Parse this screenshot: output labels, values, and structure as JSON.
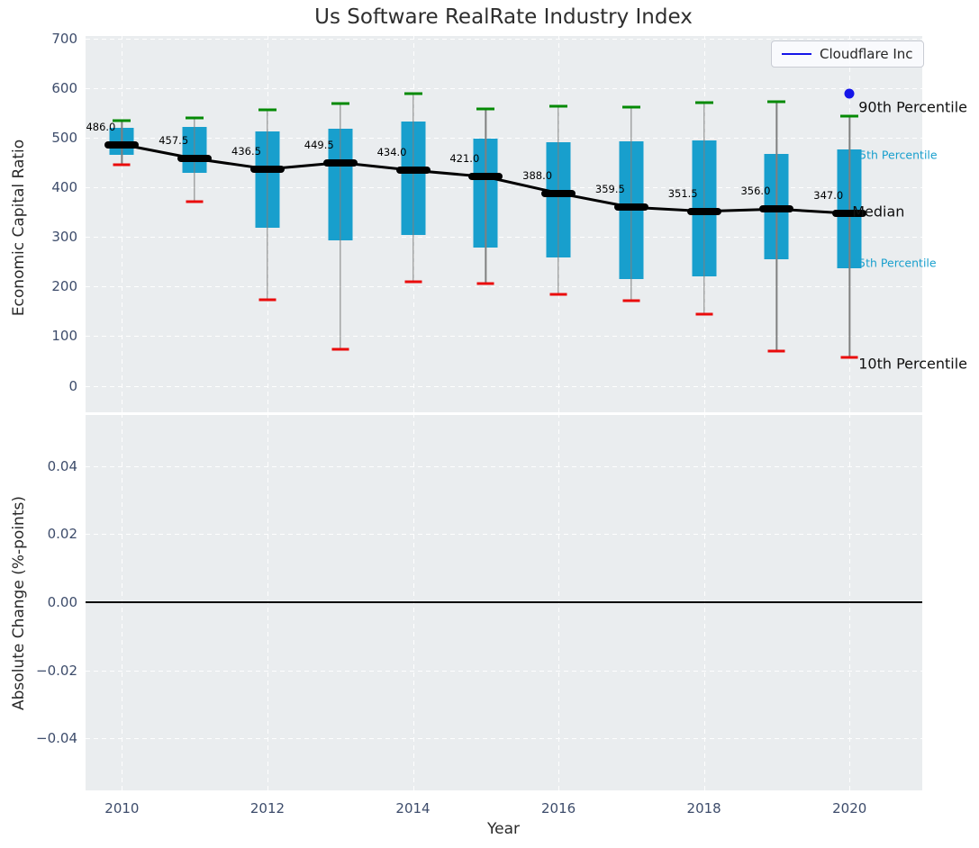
{
  "title": "Us Software RealRate Industry Index",
  "legend": {
    "label": "Cloudflare Inc"
  },
  "axes": {
    "top": {
      "ylabel": "Economic Capital Ratio"
    },
    "bottom": {
      "ylabel": "Absolute Change (%-points)",
      "xlabel": "Year"
    }
  },
  "colors": {
    "box_fill": "#189fcd",
    "cap_high": "#048a04",
    "cap_low": "#ea0b0b",
    "whisker": "#7f7f7f",
    "median": "#000000",
    "trend_line": "#000000",
    "scatter_point": "#1515e8",
    "axes_background": "#eaedef",
    "grid": "#ffffff",
    "tick_label": "#3d4c6b",
    "percentile_label_minor": "#189fcd",
    "percentile_label_major": "#101010"
  },
  "chart_data": [
    {
      "type": "bar",
      "subtype": "percentile-boxplot-with-median-line",
      "subplot": "top",
      "title": "Us Software RealRate Industry Index",
      "ylabel": "Economic Capital Ratio",
      "xlabel": "Year",
      "ylim": [
        -53.5,
        704.6
      ],
      "xlim": [
        2009.5,
        2021
      ],
      "grid": "white-dashed",
      "legend_position": "upper right",
      "yticks": [
        0,
        100,
        200,
        300,
        400,
        500,
        600,
        700
      ],
      "ytick_labels": [
        "0",
        "100",
        "200",
        "300",
        "400",
        "500",
        "600",
        "700"
      ],
      "categories": [
        2010,
        2011,
        2012,
        2013,
        2014,
        2015,
        2016,
        2017,
        2018,
        2019,
        2020
      ],
      "series": [
        {
          "name": "90th Percentile",
          "values": [
            534,
            540,
            555,
            569,
            589,
            558,
            564,
            561,
            570,
            572,
            544
          ]
        },
        {
          "name": "75th Percentile",
          "values": [
            520,
            521,
            512,
            517,
            532,
            498,
            491,
            492,
            494,
            467,
            476
          ]
        },
        {
          "name": "Median",
          "values": [
            486,
            457.5,
            436.5,
            449.5,
            434,
            421,
            388,
            359.5,
            351.5,
            356,
            347
          ]
        },
        {
          "name": "25th Percentile",
          "values": [
            465,
            429,
            319,
            293,
            303,
            278,
            259,
            215,
            220,
            254,
            236
          ]
        },
        {
          "name": "10th Percentile",
          "values": [
            445,
            371,
            173,
            73,
            209,
            205,
            184,
            172,
            144,
            70,
            58
          ]
        }
      ],
      "median_labels": [
        "486.0",
        "457.5",
        "436.5",
        "449.5",
        "434.0",
        "421.0",
        "388.0",
        "359.5",
        "351.5",
        "356.0",
        "347.0"
      ],
      "scatter": {
        "name": "Cloudflare Inc",
        "x": 2020,
        "y": 588
      },
      "side_labels": [
        {
          "text": "90th Percentile",
          "value": 561,
          "style": "major",
          "dx": 10
        },
        {
          "text": "75th Percentile",
          "value": 466,
          "style": "minor",
          "dx": 3
        },
        {
          "text": "Median",
          "value": 351,
          "style": "major",
          "dx": 3
        },
        {
          "text": "25th Percentile",
          "value": 248,
          "style": "minor",
          "dx": 2
        },
        {
          "text": "10th Percentile",
          "value": 44,
          "style": "major",
          "dx": 10
        }
      ]
    },
    {
      "type": "line",
      "subplot": "bottom",
      "ylabel": "Absolute Change (%-points)",
      "xlabel": "Year",
      "ylim": [
        -0.0553,
        0.055
      ],
      "xlim": [
        2009.5,
        2021
      ],
      "grid": "white-dashed",
      "yticks": [
        0.04,
        0.02,
        0.0,
        -0.02,
        -0.04
      ],
      "ytick_labels": [
        "0.04",
        "0.02",
        "0.00",
        "−0.02",
        "−0.04"
      ],
      "xticks": [
        2010,
        2012,
        2014,
        2016,
        2018,
        2020
      ],
      "xtick_labels": [
        "2010",
        "2012",
        "2014",
        "2016",
        "2018",
        "2020"
      ],
      "zero_line": 0.0,
      "series": []
    }
  ]
}
